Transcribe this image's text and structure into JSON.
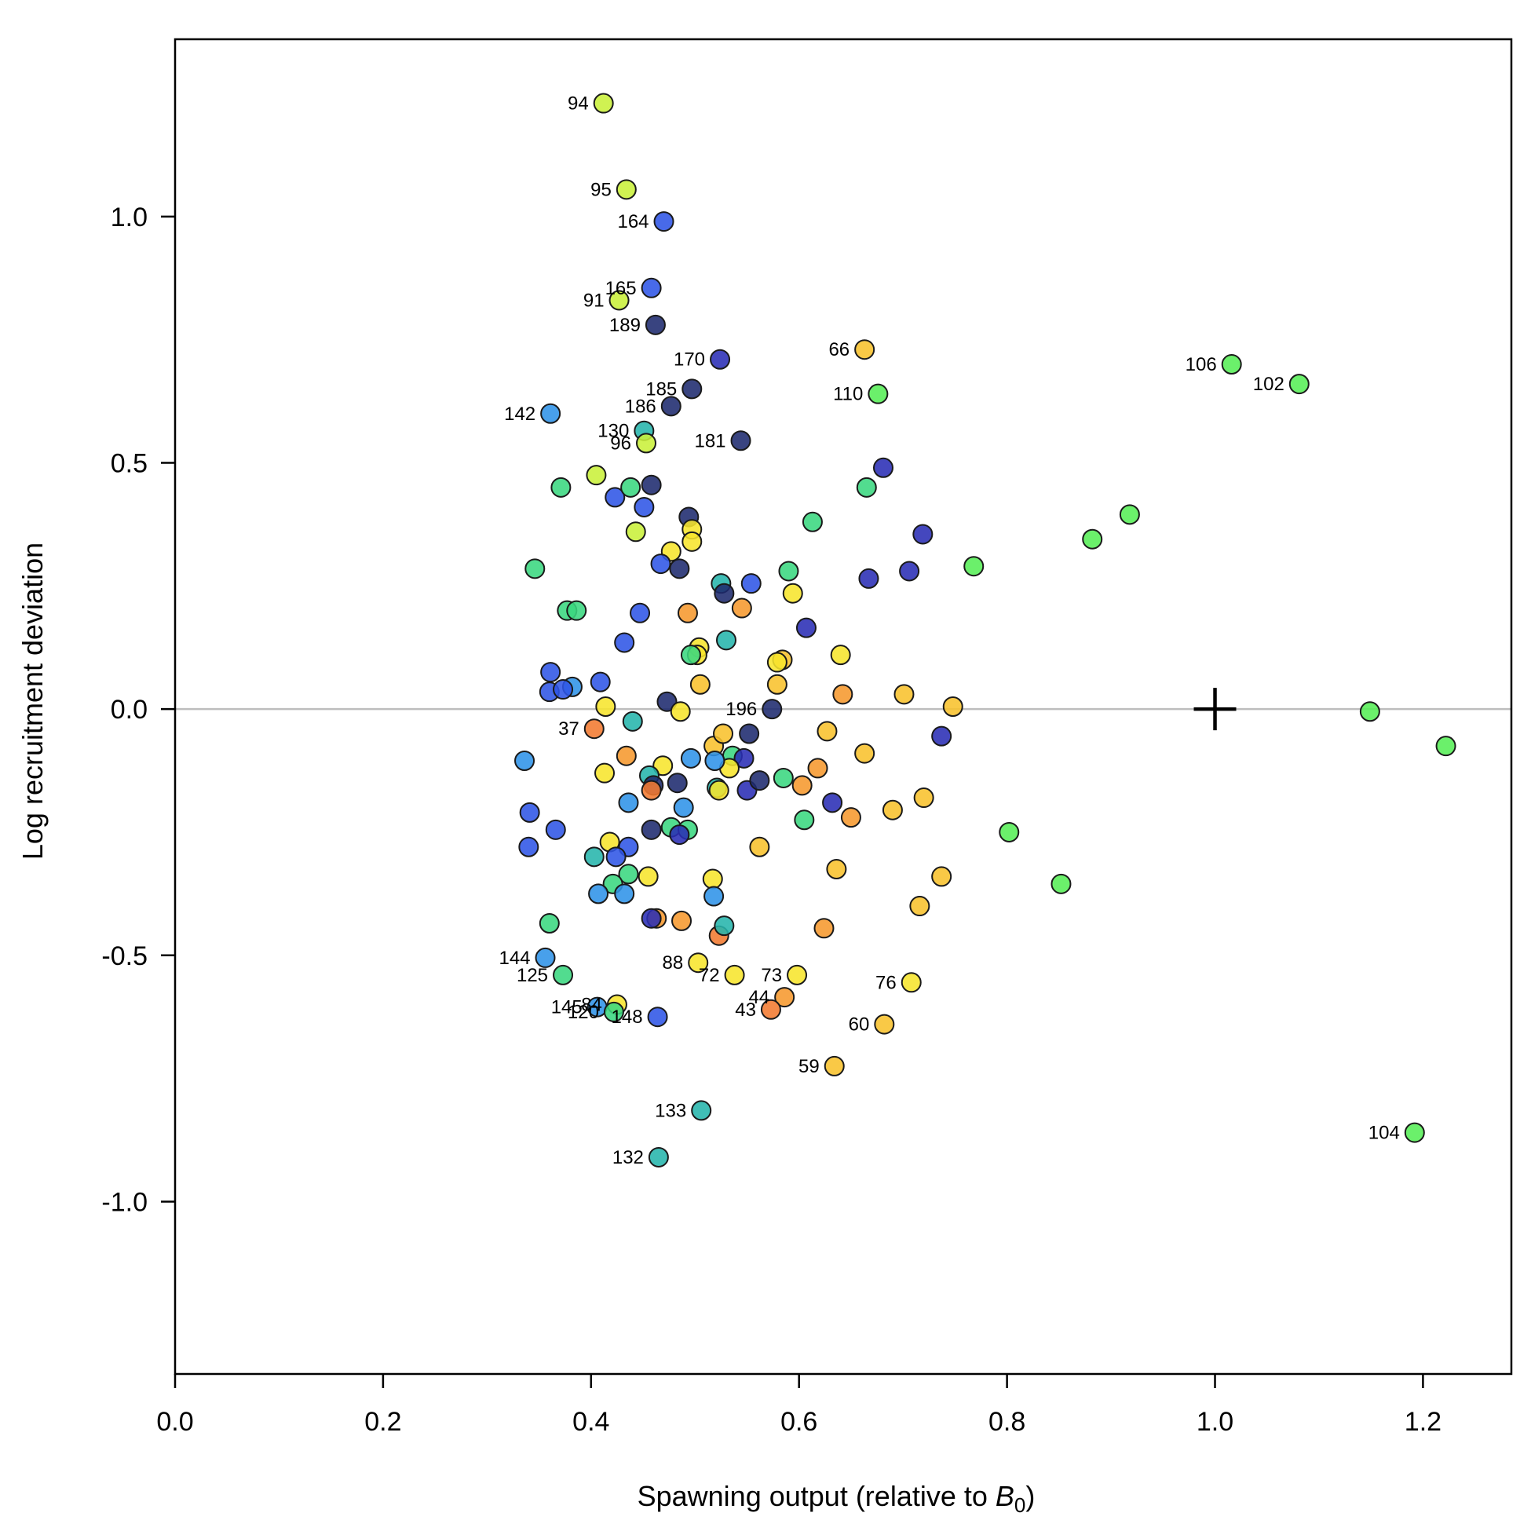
{
  "chart_data": {
    "type": "scatter",
    "xlabel": "Spawning output (relative to ",
    "xlabel_symbol": "B",
    "xlabel_subscript": "0",
    "xlabel_close": ")",
    "ylabel": "Log recruitment deviation",
    "xlim": [
      0,
      1.285
    ],
    "ylim": [
      -1.35,
      1.36
    ],
    "x_ticks": [
      0.0,
      0.2,
      0.4,
      0.6,
      0.8,
      1.0,
      1.2
    ],
    "x_tick_labels": [
      "0.0",
      "0.2",
      "0.4",
      "0.6",
      "0.8",
      "1.0",
      "1.2"
    ],
    "y_ticks": [
      -1.0,
      -0.5,
      0.0,
      0.5,
      1.0
    ],
    "y_tick_labels": [
      "-1.0",
      "-0.5",
      "0.0",
      "0.5",
      "1.0"
    ],
    "reference_line_y": 0,
    "reference_line_color": "#bdbdbd",
    "marker": {
      "type": "plus",
      "x": 1.0,
      "y": 0.0
    },
    "colors": {
      "navy": "#1e2a6e",
      "darkblue": "#2a2db5",
      "blue": "#2f55e6",
      "lightblue": "#2f93e8",
      "teal": "#26b5ac",
      "seagreen": "#3ad77f",
      "green": "#57ee57",
      "lime": "#c9f03a",
      "yellow": "#f7e52c",
      "gold": "#f8c22c",
      "orange": "#f6992e",
      "darkorange": "#f27a30"
    },
    "points": [
      {
        "x": 0.412,
        "y": 1.23,
        "c": "lime",
        "label": "94"
      },
      {
        "x": 0.434,
        "y": 1.055,
        "c": "lime",
        "label": "95"
      },
      {
        "x": 0.47,
        "y": 0.99,
        "c": "blue",
        "label": "164"
      },
      {
        "x": 0.458,
        "y": 0.855,
        "c": "blue",
        "label": "165"
      },
      {
        "x": 0.427,
        "y": 0.83,
        "c": "lime",
        "label": "91"
      },
      {
        "x": 0.462,
        "y": 0.78,
        "c": "navy",
        "label": "189"
      },
      {
        "x": 0.524,
        "y": 0.71,
        "c": "darkblue",
        "label": "170"
      },
      {
        "x": 0.663,
        "y": 0.73,
        "c": "gold",
        "label": "66"
      },
      {
        "x": 1.016,
        "y": 0.7,
        "c": "green",
        "label": "106"
      },
      {
        "x": 1.081,
        "y": 0.66,
        "c": "green",
        "label": "102"
      },
      {
        "x": 0.497,
        "y": 0.65,
        "c": "navy",
        "label": "185"
      },
      {
        "x": 0.676,
        "y": 0.64,
        "c": "green",
        "label": "110"
      },
      {
        "x": 0.477,
        "y": 0.615,
        "c": "navy",
        "label": "186"
      },
      {
        "x": 0.361,
        "y": 0.6,
        "c": "lightblue",
        "label": "142"
      },
      {
        "x": 0.451,
        "y": 0.565,
        "c": "teal",
        "label": "130"
      },
      {
        "x": 0.453,
        "y": 0.54,
        "c": "lime",
        "label": "96"
      },
      {
        "x": 0.544,
        "y": 0.545,
        "c": "navy",
        "label": "181"
      },
      {
        "x": 0.405,
        "y": 0.475,
        "c": "lime",
        "label": ""
      },
      {
        "x": 0.371,
        "y": 0.45,
        "c": "seagreen",
        "label": ""
      },
      {
        "x": 0.423,
        "y": 0.43,
        "c": "blue",
        "label": ""
      },
      {
        "x": 0.438,
        "y": 0.45,
        "c": "seagreen",
        "label": ""
      },
      {
        "x": 0.458,
        "y": 0.455,
        "c": "navy",
        "label": ""
      },
      {
        "x": 0.451,
        "y": 0.41,
        "c": "blue",
        "label": ""
      },
      {
        "x": 0.443,
        "y": 0.36,
        "c": "lime",
        "label": ""
      },
      {
        "x": 0.494,
        "y": 0.39,
        "c": "navy",
        "label": ""
      },
      {
        "x": 0.497,
        "y": 0.365,
        "c": "yellow",
        "label": ""
      },
      {
        "x": 0.497,
        "y": 0.34,
        "c": "yellow",
        "label": ""
      },
      {
        "x": 0.477,
        "y": 0.32,
        "c": "yellow",
        "label": ""
      },
      {
        "x": 0.467,
        "y": 0.295,
        "c": "blue",
        "label": ""
      },
      {
        "x": 0.485,
        "y": 0.285,
        "c": "navy",
        "label": ""
      },
      {
        "x": 0.346,
        "y": 0.285,
        "c": "seagreen",
        "label": ""
      },
      {
        "x": 0.377,
        "y": 0.2,
        "c": "seagreen",
        "label": ""
      },
      {
        "x": 0.386,
        "y": 0.2,
        "c": "seagreen",
        "label": ""
      },
      {
        "x": 0.447,
        "y": 0.195,
        "c": "blue",
        "label": ""
      },
      {
        "x": 0.493,
        "y": 0.195,
        "c": "orange",
        "label": ""
      },
      {
        "x": 0.525,
        "y": 0.255,
        "c": "teal",
        "label": ""
      },
      {
        "x": 0.528,
        "y": 0.235,
        "c": "navy",
        "label": ""
      },
      {
        "x": 0.554,
        "y": 0.255,
        "c": "blue",
        "label": ""
      },
      {
        "x": 0.545,
        "y": 0.205,
        "c": "orange",
        "label": ""
      },
      {
        "x": 0.59,
        "y": 0.28,
        "c": "seagreen",
        "label": ""
      },
      {
        "x": 0.594,
        "y": 0.235,
        "c": "yellow",
        "label": ""
      },
      {
        "x": 0.613,
        "y": 0.38,
        "c": "seagreen",
        "label": ""
      },
      {
        "x": 0.665,
        "y": 0.45,
        "c": "seagreen",
        "label": ""
      },
      {
        "x": 0.681,
        "y": 0.49,
        "c": "darkblue",
        "label": ""
      },
      {
        "x": 0.719,
        "y": 0.355,
        "c": "darkblue",
        "label": ""
      },
      {
        "x": 0.667,
        "y": 0.265,
        "c": "darkblue",
        "label": ""
      },
      {
        "x": 0.706,
        "y": 0.28,
        "c": "darkblue",
        "label": ""
      },
      {
        "x": 0.768,
        "y": 0.29,
        "c": "green",
        "label": ""
      },
      {
        "x": 0.882,
        "y": 0.345,
        "c": "green",
        "label": ""
      },
      {
        "x": 0.918,
        "y": 0.395,
        "c": "green",
        "label": ""
      },
      {
        "x": 0.432,
        "y": 0.135,
        "c": "blue",
        "label": ""
      },
      {
        "x": 0.53,
        "y": 0.14,
        "c": "teal",
        "label": ""
      },
      {
        "x": 0.504,
        "y": 0.125,
        "c": "yellow",
        "label": ""
      },
      {
        "x": 0.502,
        "y": 0.11,
        "c": "yellow",
        "label": ""
      },
      {
        "x": 0.496,
        "y": 0.11,
        "c": "seagreen",
        "label": ""
      },
      {
        "x": 0.607,
        "y": 0.165,
        "c": "darkblue",
        "label": ""
      },
      {
        "x": 0.584,
        "y": 0.1,
        "c": "gold",
        "label": ""
      },
      {
        "x": 0.579,
        "y": 0.095,
        "c": "yellow",
        "label": ""
      },
      {
        "x": 0.64,
        "y": 0.11,
        "c": "yellow",
        "label": ""
      },
      {
        "x": 0.361,
        "y": 0.075,
        "c": "blue",
        "label": ""
      },
      {
        "x": 0.382,
        "y": 0.045,
        "c": "lightblue",
        "label": ""
      },
      {
        "x": 0.36,
        "y": 0.035,
        "c": "blue",
        "label": ""
      },
      {
        "x": 0.373,
        "y": 0.04,
        "c": "blue",
        "label": ""
      },
      {
        "x": 0.409,
        "y": 0.055,
        "c": "blue",
        "label": ""
      },
      {
        "x": 0.414,
        "y": 0.005,
        "c": "yellow",
        "label": ""
      },
      {
        "x": 0.473,
        "y": 0.015,
        "c": "navy",
        "label": ""
      },
      {
        "x": 0.486,
        "y": -0.005,
        "c": "yellow",
        "label": ""
      },
      {
        "x": 0.505,
        "y": 0.05,
        "c": "gold",
        "label": ""
      },
      {
        "x": 0.579,
        "y": 0.05,
        "c": "gold",
        "label": ""
      },
      {
        "x": 0.642,
        "y": 0.03,
        "c": "orange",
        "label": ""
      },
      {
        "x": 0.701,
        "y": 0.03,
        "c": "gold",
        "label": ""
      },
      {
        "x": 0.748,
        "y": 0.005,
        "c": "gold",
        "label": ""
      },
      {
        "x": 0.574,
        "y": 0.0,
        "c": "navy",
        "label": "196"
      },
      {
        "x": 1.149,
        "y": -0.005,
        "c": "green",
        "label": ""
      },
      {
        "x": 1.222,
        "y": -0.075,
        "c": "green",
        "label": ""
      },
      {
        "x": 0.403,
        "y": -0.04,
        "c": "darkorange",
        "label": "37"
      },
      {
        "x": 0.44,
        "y": -0.025,
        "c": "teal",
        "label": ""
      },
      {
        "x": 0.518,
        "y": -0.075,
        "c": "gold",
        "label": ""
      },
      {
        "x": 0.527,
        "y": -0.05,
        "c": "gold",
        "label": ""
      },
      {
        "x": 0.552,
        "y": -0.05,
        "c": "navy",
        "label": ""
      },
      {
        "x": 0.536,
        "y": -0.095,
        "c": "seagreen",
        "label": ""
      },
      {
        "x": 0.547,
        "y": -0.1,
        "c": "darkblue",
        "label": ""
      },
      {
        "x": 0.533,
        "y": -0.12,
        "c": "yellow",
        "label": ""
      },
      {
        "x": 0.496,
        "y": -0.1,
        "c": "lightblue",
        "label": ""
      },
      {
        "x": 0.519,
        "y": -0.105,
        "c": "lightblue",
        "label": ""
      },
      {
        "x": 0.434,
        "y": -0.095,
        "c": "orange",
        "label": ""
      },
      {
        "x": 0.469,
        "y": -0.115,
        "c": "yellow",
        "label": ""
      },
      {
        "x": 0.413,
        "y": -0.13,
        "c": "yellow",
        "label": ""
      },
      {
        "x": 0.336,
        "y": -0.105,
        "c": "lightblue",
        "label": ""
      },
      {
        "x": 0.456,
        "y": -0.135,
        "c": "teal",
        "label": ""
      },
      {
        "x": 0.483,
        "y": -0.15,
        "c": "navy",
        "label": ""
      },
      {
        "x": 0.46,
        "y": -0.155,
        "c": "navy",
        "label": ""
      },
      {
        "x": 0.458,
        "y": -0.165,
        "c": "darkorange",
        "label": ""
      },
      {
        "x": 0.436,
        "y": -0.19,
        "c": "lightblue",
        "label": ""
      },
      {
        "x": 0.521,
        "y": -0.16,
        "c": "teal",
        "label": ""
      },
      {
        "x": 0.523,
        "y": -0.165,
        "c": "yellow",
        "label": ""
      },
      {
        "x": 0.55,
        "y": -0.165,
        "c": "darkblue",
        "label": ""
      },
      {
        "x": 0.562,
        "y": -0.145,
        "c": "navy",
        "label": ""
      },
      {
        "x": 0.585,
        "y": -0.14,
        "c": "seagreen",
        "label": ""
      },
      {
        "x": 0.603,
        "y": -0.155,
        "c": "orange",
        "label": ""
      },
      {
        "x": 0.618,
        "y": -0.12,
        "c": "orange",
        "label": ""
      },
      {
        "x": 0.627,
        "y": -0.045,
        "c": "gold",
        "label": ""
      },
      {
        "x": 0.663,
        "y": -0.09,
        "c": "gold",
        "label": ""
      },
      {
        "x": 0.737,
        "y": -0.055,
        "c": "darkblue",
        "label": ""
      },
      {
        "x": 0.632,
        "y": -0.19,
        "c": "darkblue",
        "label": ""
      },
      {
        "x": 0.65,
        "y": -0.22,
        "c": "orange",
        "label": ""
      },
      {
        "x": 0.605,
        "y": -0.225,
        "c": "seagreen",
        "label": ""
      },
      {
        "x": 0.69,
        "y": -0.205,
        "c": "gold",
        "label": ""
      },
      {
        "x": 0.72,
        "y": -0.18,
        "c": "gold",
        "label": ""
      },
      {
        "x": 0.341,
        "y": -0.21,
        "c": "blue",
        "label": ""
      },
      {
        "x": 0.366,
        "y": -0.245,
        "c": "blue",
        "label": ""
      },
      {
        "x": 0.34,
        "y": -0.28,
        "c": "blue",
        "label": ""
      },
      {
        "x": 0.458,
        "y": -0.245,
        "c": "navy",
        "label": ""
      },
      {
        "x": 0.477,
        "y": -0.24,
        "c": "seagreen",
        "label": ""
      },
      {
        "x": 0.493,
        "y": -0.245,
        "c": "seagreen",
        "label": ""
      },
      {
        "x": 0.485,
        "y": -0.255,
        "c": "darkblue",
        "label": ""
      },
      {
        "x": 0.489,
        "y": -0.2,
        "c": "lightblue",
        "label": ""
      },
      {
        "x": 0.418,
        "y": -0.27,
        "c": "yellow",
        "label": ""
      },
      {
        "x": 0.436,
        "y": -0.28,
        "c": "blue",
        "label": ""
      },
      {
        "x": 0.424,
        "y": -0.3,
        "c": "blue",
        "label": ""
      },
      {
        "x": 0.403,
        "y": -0.3,
        "c": "teal",
        "label": ""
      },
      {
        "x": 0.562,
        "y": -0.28,
        "c": "gold",
        "label": ""
      },
      {
        "x": 0.802,
        "y": -0.25,
        "c": "green",
        "label": ""
      },
      {
        "x": 0.436,
        "y": -0.335,
        "c": "seagreen",
        "label": ""
      },
      {
        "x": 0.455,
        "y": -0.34,
        "c": "yellow",
        "label": ""
      },
      {
        "x": 0.421,
        "y": -0.355,
        "c": "seagreen",
        "label": ""
      },
      {
        "x": 0.407,
        "y": -0.375,
        "c": "lightblue",
        "label": ""
      },
      {
        "x": 0.432,
        "y": -0.375,
        "c": "lightblue",
        "label": ""
      },
      {
        "x": 0.517,
        "y": -0.345,
        "c": "yellow",
        "label": ""
      },
      {
        "x": 0.518,
        "y": -0.38,
        "c": "lightblue",
        "label": ""
      },
      {
        "x": 0.636,
        "y": -0.325,
        "c": "gold",
        "label": ""
      },
      {
        "x": 0.737,
        "y": -0.34,
        "c": "gold",
        "label": ""
      },
      {
        "x": 0.716,
        "y": -0.4,
        "c": "gold",
        "label": ""
      },
      {
        "x": 0.852,
        "y": -0.355,
        "c": "green",
        "label": ""
      },
      {
        "x": 0.36,
        "y": -0.435,
        "c": "seagreen",
        "label": ""
      },
      {
        "x": 0.463,
        "y": -0.425,
        "c": "orange",
        "label": ""
      },
      {
        "x": 0.458,
        "y": -0.425,
        "c": "darkblue",
        "label": ""
      },
      {
        "x": 0.487,
        "y": -0.43,
        "c": "orange",
        "label": ""
      },
      {
        "x": 0.523,
        "y": -0.46,
        "c": "darkorange",
        "label": ""
      },
      {
        "x": 0.528,
        "y": -0.44,
        "c": "teal",
        "label": ""
      },
      {
        "x": 0.624,
        "y": -0.445,
        "c": "orange",
        "label": ""
      },
      {
        "x": 0.356,
        "y": -0.505,
        "c": "lightblue",
        "label": "144"
      },
      {
        "x": 0.373,
        "y": -0.54,
        "c": "seagreen",
        "label": "125"
      },
      {
        "x": 0.503,
        "y": -0.515,
        "c": "yellow",
        "label": "88"
      },
      {
        "x": 0.538,
        "y": -0.54,
        "c": "yellow",
        "label": "72"
      },
      {
        "x": 0.598,
        "y": -0.54,
        "c": "yellow",
        "label": "73"
      },
      {
        "x": 0.708,
        "y": -0.555,
        "c": "yellow",
        "label": "76"
      },
      {
        "x": 0.586,
        "y": -0.585,
        "c": "orange",
        "label": "44"
      },
      {
        "x": 0.573,
        "y": -0.61,
        "c": "darkorange",
        "label": "43"
      },
      {
        "x": 0.406,
        "y": -0.605,
        "c": "lightblue",
        "label": "145"
      },
      {
        "x": 0.425,
        "y": -0.6,
        "c": "yellow",
        "label": "84"
      },
      {
        "x": 0.422,
        "y": -0.615,
        "c": "seagreen",
        "label": "120"
      },
      {
        "x": 0.464,
        "y": -0.625,
        "c": "blue",
        "label": "148"
      },
      {
        "x": 0.682,
        "y": -0.64,
        "c": "gold",
        "label": "60"
      },
      {
        "x": 0.634,
        "y": -0.725,
        "c": "gold",
        "label": "59"
      },
      {
        "x": 0.506,
        "y": -0.815,
        "c": "teal",
        "label": "133"
      },
      {
        "x": 0.465,
        "y": -0.91,
        "c": "teal",
        "label": "132"
      },
      {
        "x": 1.192,
        "y": -0.86,
        "c": "green",
        "label": "104"
      }
    ]
  }
}
